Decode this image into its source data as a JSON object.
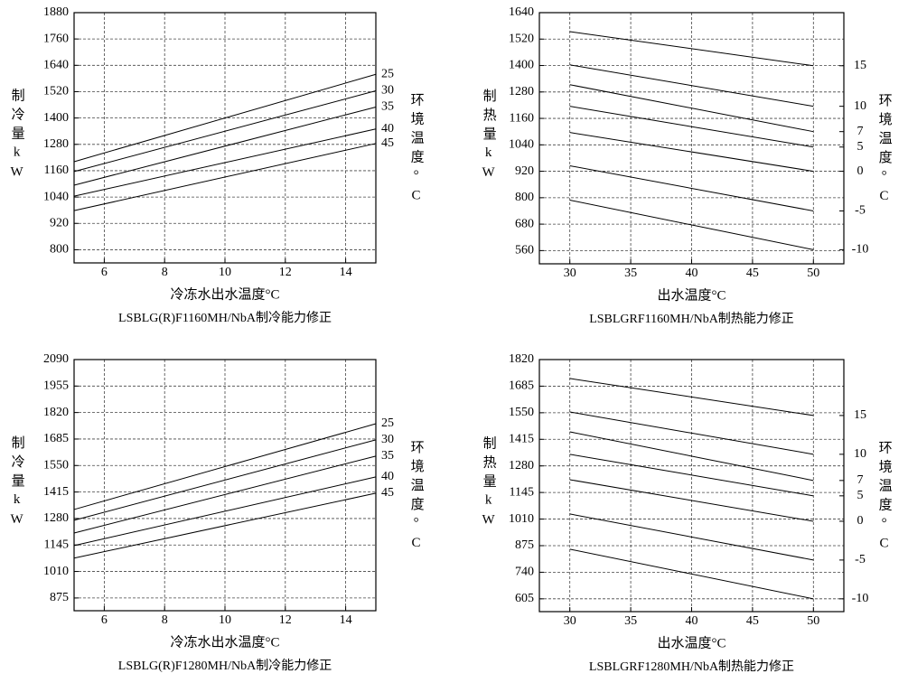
{
  "chart_data": [
    {
      "type": "line",
      "y_label": "制冷量kW",
      "x_label": "冷冻水出水温度°C",
      "right_label": "环境温度°C",
      "caption": "LSBLG(R)F1160MH/NbA制冷能力修正",
      "x": [
        5,
        15
      ],
      "xlim": [
        5,
        15
      ],
      "xticks": [
        6,
        8,
        10,
        12,
        14
      ],
      "ylim": [
        740,
        1880
      ],
      "yticks": [
        800,
        920,
        1040,
        1160,
        1280,
        1400,
        1520,
        1640,
        1760,
        1880
      ],
      "grid": true,
      "series": [
        {
          "name": "25",
          "color": "#000000",
          "values": [
            1201,
            1599
          ]
        },
        {
          "name": "30",
          "color": "#000000",
          "values": [
            1156,
            1524
          ]
        },
        {
          "name": "35",
          "color": "#000000",
          "values": [
            1094,
            1450
          ]
        },
        {
          "name": "40",
          "color": "#000000",
          "values": [
            1044,
            1350
          ]
        },
        {
          "name": "45",
          "color": "#000000",
          "values": [
            978,
            1284
          ]
        }
      ]
    },
    {
      "type": "line",
      "y_label": "制热量kW",
      "x_label": "出水温度°C",
      "right_label": "环境温度°C",
      "caption": "LSBLGRF1160MH/NbA制热能力修正",
      "x": [
        30,
        50
      ],
      "xlim": [
        27.5,
        52.5
      ],
      "xticks": [
        30,
        35,
        40,
        45,
        50
      ],
      "ylim": [
        500,
        1640
      ],
      "yticks": [
        560,
        680,
        800,
        920,
        1040,
        1160,
        1280,
        1400,
        1520,
        1640
      ],
      "grid": true,
      "series": [
        {
          "name": "15",
          "color": "#000000",
          "values": [
            1554,
            1399
          ]
        },
        {
          "name": "10",
          "color": "#000000",
          "values": [
            1403,
            1215
          ]
        },
        {
          "name": "7",
          "color": "#000000",
          "values": [
            1313,
            1100
          ]
        },
        {
          "name": "5",
          "color": "#000000",
          "values": [
            1215,
            1030
          ]
        },
        {
          "name": "0",
          "color": "#000000",
          "values": [
            1096,
            920
          ]
        },
        {
          "name": "-5",
          "color": "#000000",
          "values": [
            945,
            740
          ]
        },
        {
          "name": "-10",
          "color": "#000000",
          "values": [
            789,
            564
          ]
        }
      ]
    },
    {
      "type": "line",
      "y_label": "制冷量kW",
      "x_label": "冷冻水出水温度°C",
      "right_label": "环境温度°C",
      "caption": "LSBLG(R)F1280MH/NbA制冷能力修正",
      "x": [
        5,
        15
      ],
      "xlim": [
        5,
        15
      ],
      "xticks": [
        6,
        8,
        10,
        12,
        14
      ],
      "ylim": [
        810,
        2090
      ],
      "yticks": [
        875,
        1010,
        1145,
        1280,
        1415,
        1550,
        1685,
        1820,
        1955,
        2090
      ],
      "grid": true,
      "series": [
        {
          "name": "25",
          "color": "#000000",
          "values": [
            1326,
            1763
          ]
        },
        {
          "name": "30",
          "color": "#000000",
          "values": [
            1271,
            1681
          ]
        },
        {
          "name": "35",
          "color": "#000000",
          "values": [
            1206,
            1598
          ]
        },
        {
          "name": "40",
          "color": "#000000",
          "values": [
            1142,
            1492
          ]
        },
        {
          "name": "45",
          "color": "#000000",
          "values": [
            1078,
            1409
          ]
        }
      ]
    },
    {
      "type": "line",
      "y_label": "制热量kW",
      "x_label": "出水温度°C",
      "right_label": "环境温度°C",
      "caption": "LSBLGRF1280MH/NbA制热能力修正",
      "x": [
        30,
        50
      ],
      "xlim": [
        27.5,
        52.5
      ],
      "xticks": [
        30,
        35,
        40,
        45,
        50
      ],
      "ylim": [
        540,
        1820
      ],
      "yticks": [
        605,
        740,
        875,
        1010,
        1145,
        1280,
        1415,
        1550,
        1685,
        1820
      ],
      "grid": true,
      "series": [
        {
          "name": "15",
          "color": "#000000",
          "values": [
            1724,
            1536
          ]
        },
        {
          "name": "10",
          "color": "#000000",
          "values": [
            1554,
            1339
          ]
        },
        {
          "name": "7",
          "color": "#000000",
          "values": [
            1453,
            1206
          ]
        },
        {
          "name": "5",
          "color": "#000000",
          "values": [
            1339,
            1128
          ]
        },
        {
          "name": "0",
          "color": "#000000",
          "values": [
            1210,
            999
          ]
        },
        {
          "name": "-5",
          "color": "#000000",
          "values": [
            1036,
            802
          ]
        },
        {
          "name": "-10",
          "color": "#000000",
          "values": [
            857,
            605
          ]
        }
      ]
    }
  ]
}
